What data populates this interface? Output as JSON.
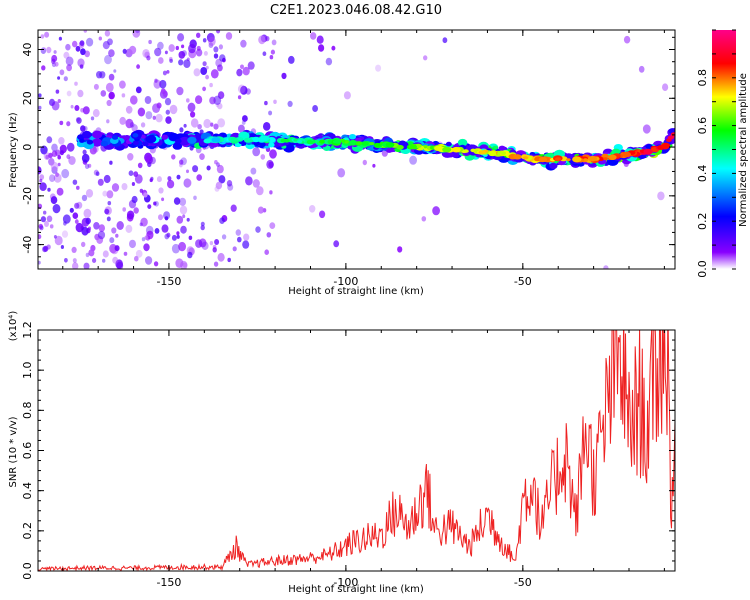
{
  "title": "C2E1.2023.046.08.42.G10",
  "chart_data": [
    {
      "type": "heatmap",
      "xlabel": "Height of straight line (km)",
      "ylabel": "Frequency (Hz)",
      "xlim": [
        -187,
        -7
      ],
      "ylim": [
        -50,
        48
      ],
      "xticks": [
        -150,
        -100,
        -50
      ],
      "yticks": [
        -40,
        -20,
        0,
        20,
        40
      ],
      "colorbar": {
        "label": "Normalized spectral amplitude",
        "range": [
          0,
          1
        ],
        "ticks": [
          0.0,
          0.2,
          0.4,
          0.6,
          0.8
        ],
        "colors": [
          "#ffffff",
          "#8800ff",
          "#0000ff",
          "#00ffff",
          "#00ff00",
          "#ffff00",
          "#ff0000",
          "#ff0088"
        ]
      },
      "ridge": {
        "x": [
          -175,
          -150,
          -130,
          -100,
          -80,
          -60,
          -45,
          -30,
          -20,
          -10,
          -7
        ],
        "y": [
          3,
          3,
          3,
          2,
          0,
          -2,
          -5,
          -5,
          -3,
          0,
          6
        ]
      }
    },
    {
      "type": "line",
      "xlabel": "Height of straight line (km)",
      "ylabel": "SNR (10 * v/v)",
      "y_multiplier": "(x10⁴)",
      "xlim": [
        -187,
        -7
      ],
      "ylim": [
        0,
        1.2
      ],
      "xticks": [
        -150,
        -100,
        -50
      ],
      "yticks": [
        0.0,
        0.2,
        0.4,
        0.6,
        0.8,
        1.0,
        1.2
      ],
      "series": [
        {
          "color": "#ee2222",
          "x": [
            -187,
            -175,
            -160,
            -145,
            -135,
            -131,
            -128,
            -120,
            -112,
            -105,
            -97,
            -90,
            -86,
            -82,
            -77,
            -75,
            -70,
            -65,
            -60,
            -55,
            -52,
            -50,
            -47,
            -45,
            -42,
            -38,
            -35,
            -32,
            -30,
            -27,
            -25,
            -22,
            -20,
            -17,
            -15,
            -13,
            -11,
            -9,
            -8,
            -7
          ],
          "y": [
            0.01,
            0.015,
            0.015,
            0.02,
            0.02,
            0.12,
            0.03,
            0.05,
            0.06,
            0.08,
            0.15,
            0.18,
            0.3,
            0.22,
            0.42,
            0.2,
            0.22,
            0.12,
            0.28,
            0.12,
            0.05,
            0.35,
            0.45,
            0.2,
            0.4,
            0.6,
            0.25,
            0.75,
            0.45,
            0.7,
            0.95,
            1.05,
            0.7,
            0.85,
            0.7,
            0.9,
            1.18,
            1.02,
            0.3,
            0.75
          ]
        }
      ]
    }
  ]
}
